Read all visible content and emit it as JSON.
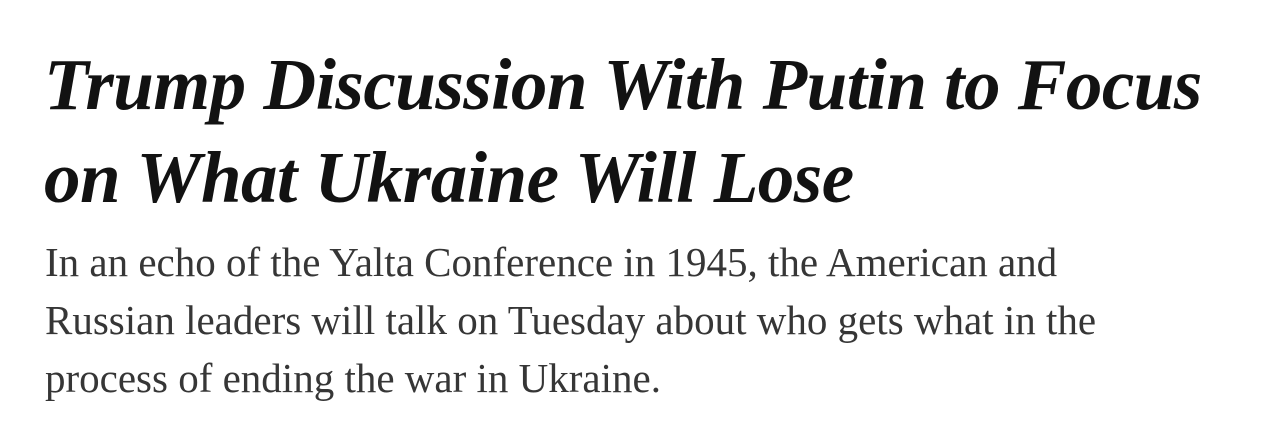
{
  "article": {
    "headline_lines": [
      "Trump Discussion With Putin to Focus",
      "on What Ukraine Will Lose"
    ],
    "summary_lines": [
      "In an echo of the Yalta Conference in 1945, the American and",
      "Russian leaders will talk on Tuesday about who gets what in the",
      "process of ending the war in Ukraine."
    ]
  }
}
